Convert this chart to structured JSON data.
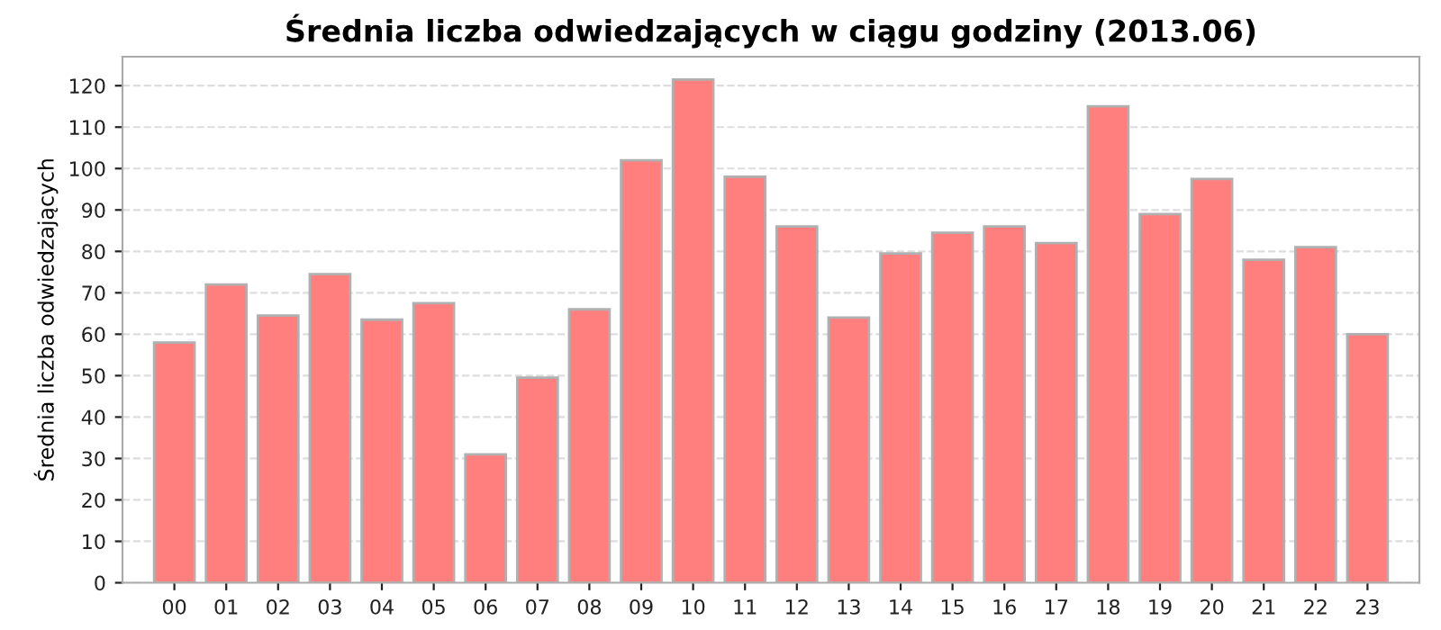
{
  "chart_data": {
    "type": "bar",
    "title": "Średnia liczba odwiedzających w ciągu godziny (2013.06)",
    "ylabel": "Średnia liczba odwiedzających",
    "categories": [
      "00",
      "01",
      "02",
      "03",
      "04",
      "05",
      "06",
      "07",
      "08",
      "09",
      "10",
      "11",
      "12",
      "13",
      "14",
      "15",
      "16",
      "17",
      "18",
      "19",
      "20",
      "21",
      "22",
      "23"
    ],
    "values": [
      58,
      72,
      64.5,
      74.5,
      63.5,
      67.5,
      31,
      49.5,
      66,
      102,
      121.5,
      98,
      86,
      64,
      79.5,
      84.5,
      86,
      82,
      115,
      89,
      97.5,
      78,
      81,
      60
    ],
    "color": "#ff7f7f",
    "ylim": [
      0,
      127
    ],
    "yticks": [
      0,
      10,
      20,
      30,
      40,
      50,
      60,
      70,
      80,
      90,
      100,
      110,
      120
    ],
    "grid": "y"
  }
}
